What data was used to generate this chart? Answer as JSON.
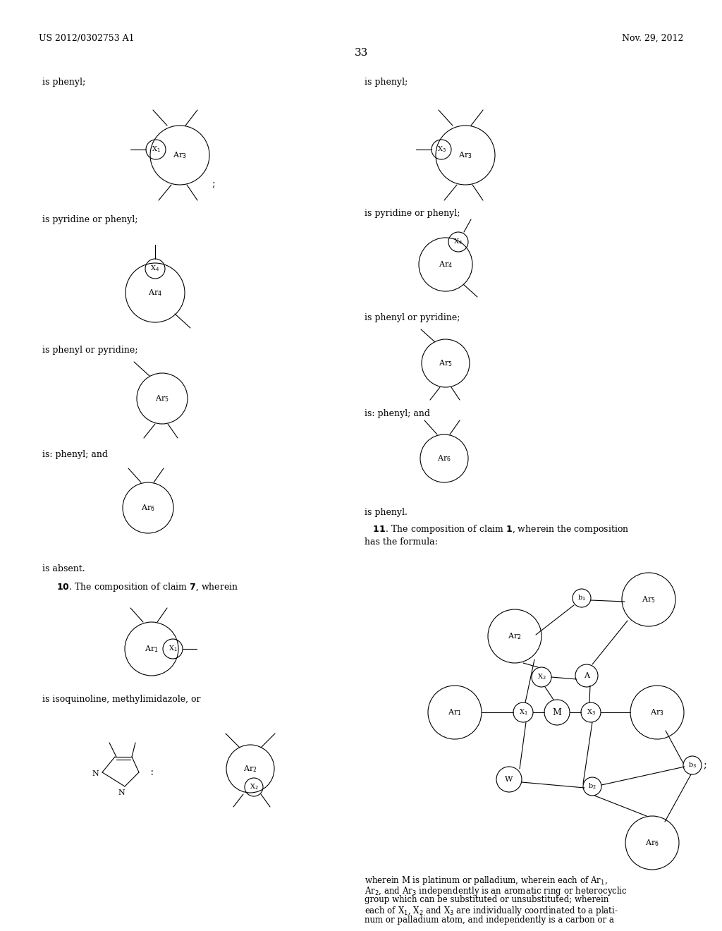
{
  "bg_color": "#ffffff",
  "header_left": "US 2012/0302753 A1",
  "header_right": "Nov. 29, 2012",
  "page_number": "33",
  "font_color": "#000000",
  "fig_width": 10.24,
  "fig_height": 13.2,
  "dpi": 100
}
